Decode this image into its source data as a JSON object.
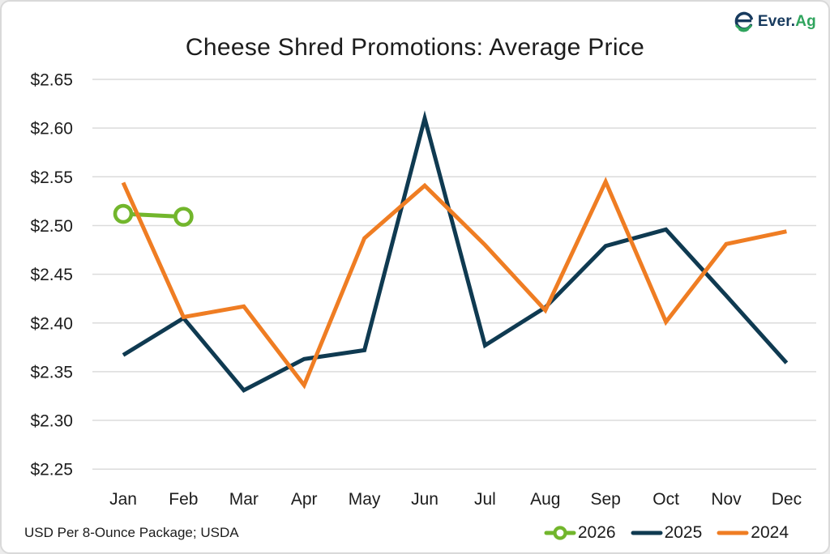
{
  "header": {
    "logo_text_primary": "Ever.",
    "logo_text_accent": "Ag"
  },
  "footnote": "USD Per 8-Ounce Package; USDA",
  "colors": {
    "logo_navy": "#173a5e",
    "logo_green": "#2fa45d",
    "gridline": "#dbdbdb",
    "text": "#1c1c1c",
    "card_border": "#d9d9d9"
  },
  "chart_data": {
    "type": "line",
    "title": "Cheese Shred Promotions: Average Price",
    "categories": [
      "Jan",
      "Feb",
      "Mar",
      "Apr",
      "May",
      "Jun",
      "Jul",
      "Aug",
      "Sep",
      "Oct",
      "Nov",
      "Dec"
    ],
    "series": [
      {
        "name": "2026",
        "color": "#72b62c",
        "marker": "open-circle",
        "values": [
          2.512,
          2.509,
          null,
          null,
          null,
          null,
          null,
          null,
          null,
          null,
          null,
          null
        ]
      },
      {
        "name": "2025",
        "color": "#0f3a51",
        "marker": "none",
        "values": [
          2.367,
          2.405,
          2.331,
          2.363,
          2.372,
          2.61,
          2.377,
          2.416,
          2.479,
          2.496,
          2.428,
          2.359
        ]
      },
      {
        "name": "2024",
        "color": "#ef7d23",
        "marker": "none",
        "values": [
          2.544,
          2.406,
          2.417,
          2.336,
          2.487,
          2.541,
          2.48,
          2.413,
          2.545,
          2.401,
          2.481,
          2.494
        ]
      }
    ],
    "yticks": [
      2.65,
      2.6,
      2.55,
      2.5,
      2.45,
      2.4,
      2.35,
      2.3,
      2.25
    ],
    "ylim": [
      2.25,
      2.65
    ],
    "ytick_prefix": "$",
    "xlabel": "",
    "ylabel": "USD Per 8-Ounce Package",
    "grid": "horizontal",
    "legend_position": "bottom-right"
  }
}
